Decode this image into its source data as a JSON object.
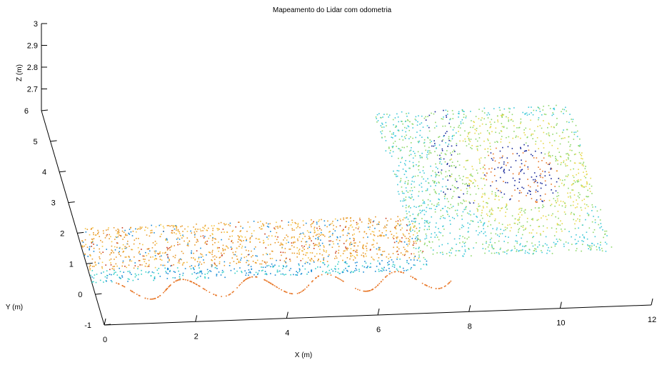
{
  "chart_data": {
    "type": "scatter",
    "projection": "3d",
    "title": "Mapeamento do Lidar com odometria",
    "xlabel": "X (m)",
    "ylabel": "Y (m)",
    "zlabel": "Z (m)",
    "xlim": [
      0,
      12
    ],
    "ylim": [
      -1,
      6
    ],
    "zlim": [
      2.6,
      3
    ],
    "x_ticks": [
      "0",
      "2",
      "4",
      "6",
      "8",
      "10",
      "12"
    ],
    "y_ticks": [
      "-1",
      "0",
      "1",
      "2",
      "3",
      "4",
      "5",
      "6"
    ],
    "z_ticks": [
      "2.7",
      "2.8",
      "2.9",
      "3"
    ],
    "grid": false,
    "colormap": "jet",
    "series": [
      {
        "description_key": "corridor-wall-cloud",
        "x_range": [
          0,
          7.4
        ],
        "y_range": [
          0.4,
          2.2
        ],
        "dominant_colors": [
          "#e89a2a",
          "#f5c542",
          "#1a8bd6",
          "#35d0c8",
          "#c83a1a"
        ]
      },
      {
        "description_key": "room-cloud",
        "x_range": [
          7.2,
          11.5
        ],
        "y_range": [
          0.8,
          5.6
        ],
        "dominant_colors": [
          "#8fd86b",
          "#3fc9d8",
          "#e6d84a",
          "#e87a2a",
          "#1a2a9a"
        ]
      },
      {
        "description_key": "floor-trace",
        "x_range": [
          0.5,
          7.8
        ],
        "y_range": [
          -0.2,
          0.4
        ],
        "dominant_colors": [
          "#e8782a"
        ]
      }
    ]
  }
}
